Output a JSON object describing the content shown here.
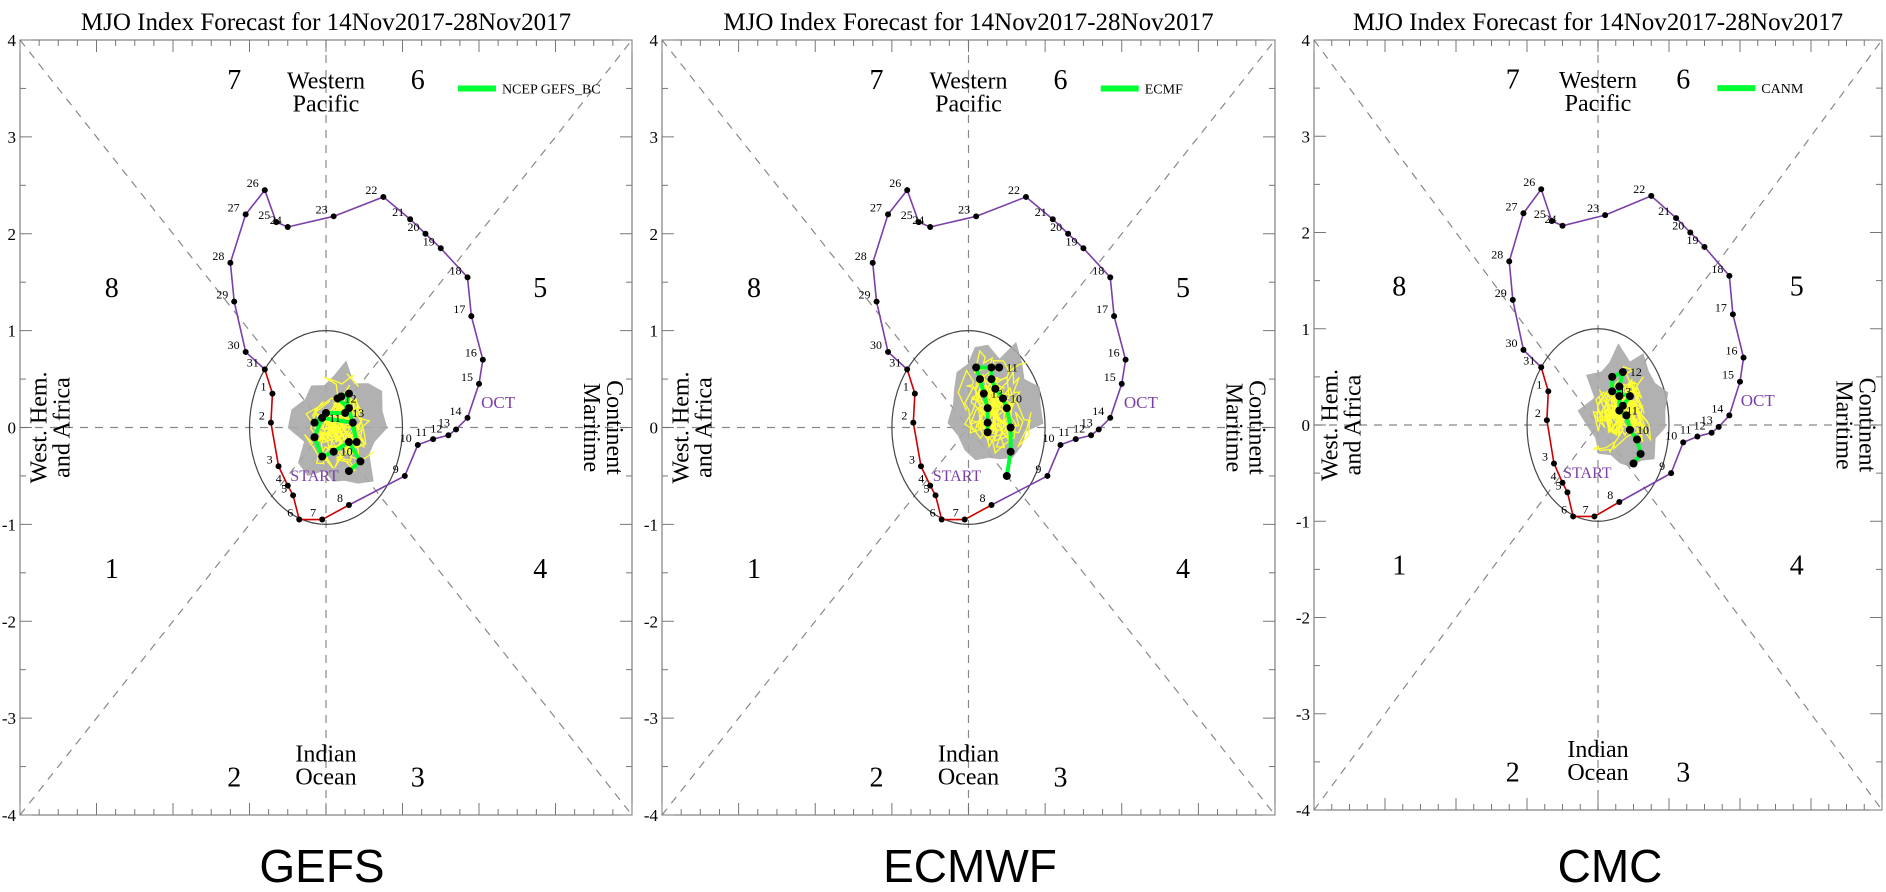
{
  "chart_data": [
    {
      "type": "scatter",
      "title": "MJO Index Forecast for 14Nov2017-28Nov2017",
      "caption": "GEFS",
      "legend": {
        "label": "NCEP GEFS_BC",
        "color": "#00ff33",
        "position": "top-right"
      },
      "xlim": [
        -4,
        4
      ],
      "ylim": [
        -4,
        4
      ],
      "y_ticks": [
        "-4",
        "-3",
        "-2",
        "-1",
        "0",
        "1",
        "2",
        "3",
        "4"
      ],
      "phase_numbers": [
        "1",
        "2",
        "3",
        "4",
        "5",
        "6",
        "7",
        "8"
      ],
      "region_labels": {
        "top": [
          "Western",
          "Pacific"
        ],
        "bottom": [
          "Indian",
          "Ocean"
        ],
        "left": [
          "West. Hem.",
          "and Africa"
        ],
        "right": [
          "Maritime",
          "Continent"
        ]
      },
      "month_label": "OCT",
      "start_label": "START",
      "colors": {
        "observed_oct": "#7b3fa8",
        "observed_nov": "#cc0000",
        "ensemble": "#ffff33",
        "spread": "#a9a9a9",
        "ensemble_mean": "#00ff33"
      },
      "observed": {
        "oct": {
          "labels": [
            "15",
            "16",
            "17",
            "18",
            "19",
            "20",
            "21",
            "22",
            "23",
            "24",
            "25",
            "26",
            "27",
            "28",
            "29",
            "30",
            "31"
          ],
          "points": [
            [
              2.0,
              0.45
            ],
            [
              2.05,
              0.7
            ],
            [
              1.9,
              1.15
            ],
            [
              1.85,
              1.55
            ],
            [
              1.5,
              1.85
            ],
            [
              1.3,
              2.0
            ],
            [
              1.1,
              2.15
            ],
            [
              0.75,
              2.38
            ],
            [
              0.1,
              2.18
            ],
            [
              -0.5,
              2.07
            ],
            [
              -0.65,
              2.12
            ],
            [
              -0.8,
              2.45
            ],
            [
              -1.05,
              2.2
            ],
            [
              -1.25,
              1.7
            ],
            [
              -1.2,
              1.3
            ],
            [
              -1.05,
              0.78
            ],
            [
              -0.8,
              0.6
            ]
          ]
        },
        "nov": {
          "labels": [
            "1",
            "2",
            "3",
            "4",
            "5",
            "6",
            "7",
            "8"
          ],
          "points": [
            [
              -0.7,
              0.35
            ],
            [
              -0.72,
              0.05
            ],
            [
              -0.62,
              -0.4
            ],
            [
              -0.5,
              -0.6
            ],
            [
              -0.43,
              -0.7
            ],
            [
              -0.35,
              -0.95
            ],
            [
              -0.05,
              -0.95
            ],
            [
              0.3,
              -0.8
            ]
          ]
        },
        "forecast_days": {
          "labels": [
            "9",
            "10",
            "11",
            "12",
            "13",
            "14"
          ],
          "points": [
            [
              1.03,
              -0.5
            ],
            [
              1.2,
              -0.18
            ],
            [
              1.4,
              -0.12
            ],
            [
              1.6,
              -0.08
            ],
            [
              1.7,
              -0.02
            ],
            [
              1.85,
              0.1
            ]
          ]
        }
      },
      "ensemble_mean": {
        "labels": [
          "10",
          "11",
          "12",
          "13"
        ],
        "points": [
          [
            0.3,
            -0.45
          ],
          [
            0.45,
            -0.35
          ],
          [
            0.3,
            -0.15
          ],
          [
            0.1,
            -0.25
          ],
          [
            -0.05,
            -0.3
          ],
          [
            -0.15,
            -0.1
          ],
          [
            -0.05,
            0.1
          ],
          [
            0.35,
            0.05
          ],
          [
            0.4,
            -0.15
          ],
          [
            0.3,
            0.2
          ],
          [
            0.15,
            0.3
          ],
          [
            0.2,
            0.32
          ],
          [
            0.3,
            0.35
          ],
          [
            0.25,
            0.15
          ],
          [
            0.0,
            0.15
          ],
          [
            -0.15,
            0.05
          ]
        ]
      }
    },
    {
      "type": "scatter",
      "title": "MJO Index Forecast for 14Nov2017-28Nov2017",
      "caption": "ECMWF",
      "legend": {
        "label": "ECMF",
        "color": "#00ff33",
        "position": "top-right"
      },
      "xlim": [
        -4,
        4
      ],
      "ylim": [
        -4,
        4
      ],
      "y_ticks": [
        "-4",
        "-3",
        "-2",
        "-1",
        "0",
        "1",
        "2",
        "3",
        "4"
      ],
      "phase_numbers": [
        "1",
        "2",
        "3",
        "4",
        "5",
        "6",
        "7",
        "8"
      ],
      "region_labels": {
        "top": [
          "Western",
          "Pacific"
        ],
        "bottom": [
          "Indian",
          "Ocean"
        ],
        "left": [
          "West. Hem.",
          "and Africa"
        ],
        "right": [
          "Maritime",
          "Continent"
        ]
      },
      "month_label": "OCT",
      "start_label": "START",
      "colors": {
        "observed_oct": "#7b3fa8",
        "observed_nov": "#cc0000",
        "ensemble": "#ffff33",
        "spread": "#a9a9a9",
        "ensemble_mean": "#00ff33"
      },
      "observed": {
        "oct": {
          "labels": [
            "15",
            "16",
            "17",
            "18",
            "19",
            "20",
            "21",
            "22",
            "23",
            "24",
            "25",
            "26",
            "27",
            "28",
            "29",
            "30",
            "31"
          ],
          "points": [
            [
              2.0,
              0.45
            ],
            [
              2.05,
              0.7
            ],
            [
              1.9,
              1.15
            ],
            [
              1.85,
              1.55
            ],
            [
              1.5,
              1.85
            ],
            [
              1.3,
              2.0
            ],
            [
              1.1,
              2.15
            ],
            [
              0.75,
              2.38
            ],
            [
              0.1,
              2.18
            ],
            [
              -0.5,
              2.07
            ],
            [
              -0.65,
              2.12
            ],
            [
              -0.8,
              2.45
            ],
            [
              -1.05,
              2.2
            ],
            [
              -1.25,
              1.7
            ],
            [
              -1.2,
              1.3
            ],
            [
              -1.05,
              0.78
            ],
            [
              -0.8,
              0.6
            ]
          ]
        },
        "nov": {
          "labels": [
            "1",
            "2",
            "3",
            "4",
            "5",
            "6",
            "7",
            "8"
          ],
          "points": [
            [
              -0.7,
              0.35
            ],
            [
              -0.72,
              0.05
            ],
            [
              -0.62,
              -0.4
            ],
            [
              -0.5,
              -0.6
            ],
            [
              -0.43,
              -0.7
            ],
            [
              -0.35,
              -0.95
            ],
            [
              -0.05,
              -0.95
            ],
            [
              0.3,
              -0.8
            ]
          ]
        },
        "forecast_days": {
          "labels": [
            "9",
            "10",
            "11",
            "12",
            "13",
            "14"
          ],
          "points": [
            [
              1.03,
              -0.5
            ],
            [
              1.2,
              -0.18
            ],
            [
              1.4,
              -0.12
            ],
            [
              1.6,
              -0.08
            ],
            [
              1.7,
              -0.02
            ],
            [
              1.85,
              0.1
            ]
          ]
        }
      },
      "ensemble_mean": {
        "labels": [
          "10",
          "11",
          "13"
        ],
        "points": [
          [
            0.5,
            -0.5
          ],
          [
            0.55,
            -0.25
          ],
          [
            0.55,
            0.0
          ],
          [
            0.5,
            0.2
          ],
          [
            0.45,
            0.3
          ],
          [
            0.35,
            0.4
          ],
          [
            0.3,
            0.5
          ],
          [
            0.3,
            0.62
          ],
          [
            0.4,
            0.62
          ],
          [
            0.1,
            0.62
          ],
          [
            0.15,
            0.5
          ],
          [
            0.2,
            0.35
          ],
          [
            0.25,
            0.2
          ],
          [
            0.25,
            0.05
          ],
          [
            0.25,
            -0.05
          ]
        ]
      }
    },
    {
      "type": "scatter",
      "title": "MJO Index Forecast for 14Nov2017-28Nov2017",
      "caption": "CMC",
      "legend": {
        "label": "CANM",
        "color": "#00ff33",
        "position": "top-right"
      },
      "xlim": [
        -4,
        4
      ],
      "ylim": [
        -4,
        4
      ],
      "y_ticks": [
        "-4",
        "-3",
        "-2",
        "-1",
        "0",
        "1",
        "2",
        "3",
        "4"
      ],
      "phase_numbers": [
        "1",
        "2",
        "3",
        "4",
        "5",
        "6",
        "7",
        "8"
      ],
      "region_labels": {
        "top": [
          "Western",
          "Pacific"
        ],
        "bottom": [
          "Indian",
          "Ocean"
        ],
        "left": [
          "West. Hem.",
          "and Africa"
        ],
        "right": [
          "Maritime",
          "Continent"
        ]
      },
      "month_label": "OCT",
      "start_label": "START",
      "colors": {
        "observed_oct": "#7b3fa8",
        "observed_nov": "#cc0000",
        "ensemble": "#ffff33",
        "spread": "#a9a9a9",
        "ensemble_mean": "#00ff33"
      },
      "observed": {
        "oct": {
          "labels": [
            "15",
            "16",
            "17",
            "18",
            "19",
            "20",
            "21",
            "22",
            "23",
            "24",
            "25",
            "26",
            "27",
            "28",
            "29",
            "30",
            "31"
          ],
          "points": [
            [
              2.0,
              0.45
            ],
            [
              2.05,
              0.7
            ],
            [
              1.9,
              1.15
            ],
            [
              1.85,
              1.55
            ],
            [
              1.5,
              1.85
            ],
            [
              1.3,
              2.0
            ],
            [
              1.1,
              2.15
            ],
            [
              0.75,
              2.38
            ],
            [
              0.1,
              2.18
            ],
            [
              -0.5,
              2.07
            ],
            [
              -0.65,
              2.12
            ],
            [
              -0.8,
              2.45
            ],
            [
              -1.05,
              2.2
            ],
            [
              -1.25,
              1.7
            ],
            [
              -1.2,
              1.3
            ],
            [
              -1.05,
              0.78
            ],
            [
              -0.8,
              0.6
            ]
          ]
        },
        "nov": {
          "labels": [
            "1",
            "2",
            "3",
            "4",
            "5",
            "6",
            "7",
            "8"
          ],
          "points": [
            [
              -0.7,
              0.35
            ],
            [
              -0.72,
              0.05
            ],
            [
              -0.62,
              -0.4
            ],
            [
              -0.5,
              -0.6
            ],
            [
              -0.43,
              -0.7
            ],
            [
              -0.35,
              -0.95
            ],
            [
              -0.05,
              -0.95
            ],
            [
              0.3,
              -0.8
            ]
          ]
        },
        "forecast_days": {
          "labels": [
            "9",
            "10",
            "11",
            "12",
            "13",
            "14"
          ],
          "points": [
            [
              1.03,
              -0.5
            ],
            [
              1.2,
              -0.18
            ],
            [
              1.4,
              -0.12
            ],
            [
              1.6,
              -0.08
            ],
            [
              1.7,
              -0.02
            ],
            [
              1.85,
              0.1
            ]
          ]
        }
      },
      "ensemble_mean": {
        "labels": [
          "10",
          "11",
          "12",
          "13"
        ],
        "points": [
          [
            0.5,
            -0.4
          ],
          [
            0.6,
            -0.3
          ],
          [
            0.55,
            -0.15
          ],
          [
            0.45,
            -0.05
          ],
          [
            0.4,
            0.1
          ],
          [
            0.3,
            0.15
          ],
          [
            0.3,
            0.3
          ],
          [
            0.3,
            0.4
          ],
          [
            0.35,
            0.55
          ],
          [
            0.2,
            0.5
          ],
          [
            0.2,
            0.35
          ],
          [
            0.45,
            0.3
          ],
          [
            0.35,
            0.2
          ]
        ]
      }
    }
  ]
}
